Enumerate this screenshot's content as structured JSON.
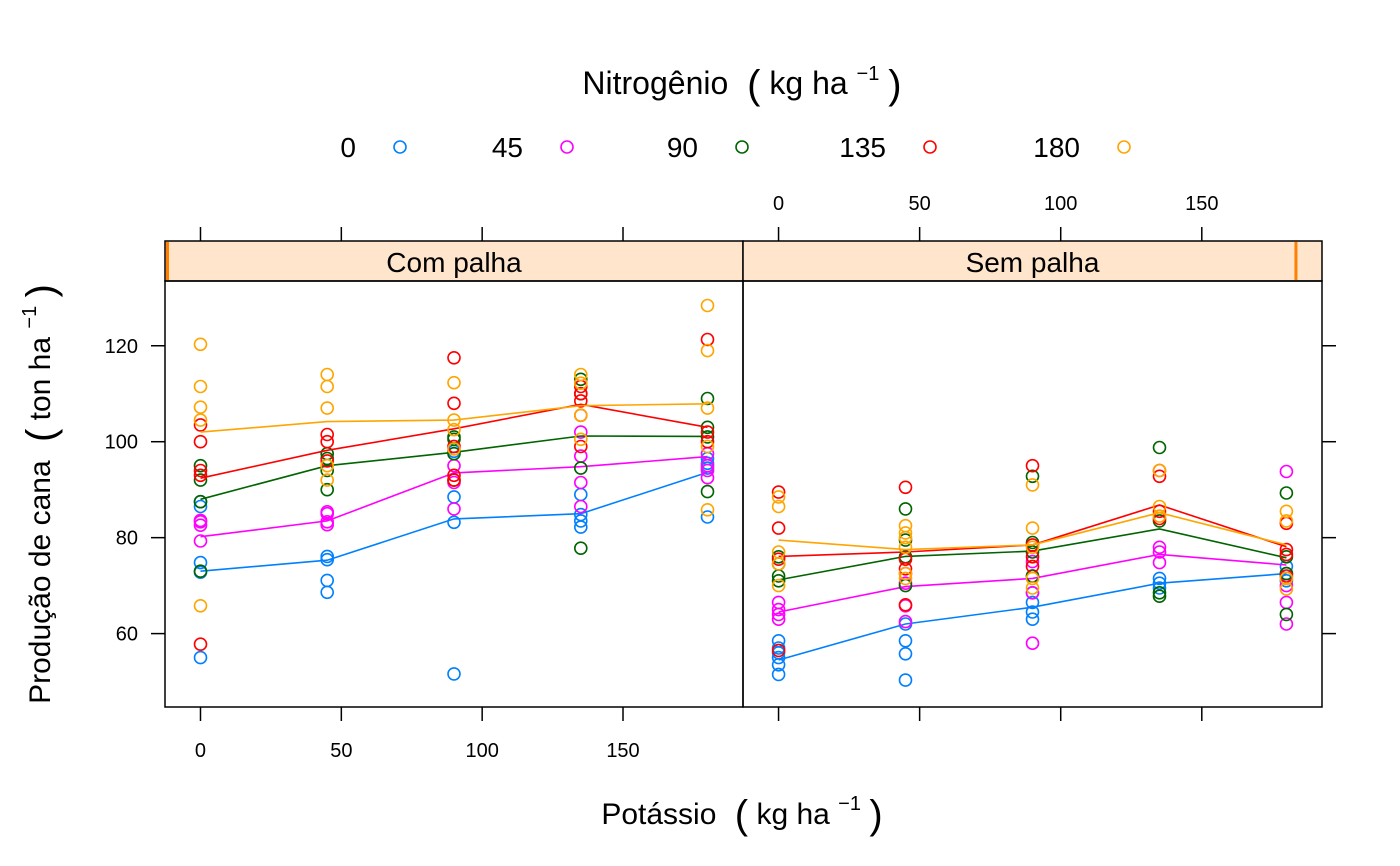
{
  "chart_data": {
    "type": "scatter",
    "legend": {
      "title_main": "Nitrogênio",
      "title_unit_base": "kg  ha",
      "title_unit_exp": "−1",
      "placement": "top",
      "entries": [
        {
          "name": "0",
          "color": "#0080ff"
        },
        {
          "name": "45",
          "color": "#ff00ff"
        },
        {
          "name": "90",
          "color": "#006400"
        },
        {
          "name": "135",
          "color": "#ff0000"
        },
        {
          "name": "180",
          "color": "#ffa500"
        }
      ]
    },
    "xlabel": {
      "main": "Potássio",
      "unit_base": "kg  ha",
      "unit_exp": "−1"
    },
    "ylabel": {
      "main": "Produção de cana",
      "unit_base": "ton  ha",
      "unit_exp": "−1"
    },
    "xlim": [
      -12.6,
      192.6
    ],
    "ylim": [
      44.7,
      133.5
    ],
    "x_ticks": [
      0,
      50,
      100,
      150
    ],
    "y_ticks": [
      60,
      80,
      100,
      120
    ],
    "x_tick_labels": [
      "0",
      "50",
      "100",
      "150"
    ],
    "y_tick_labels": [
      "60",
      "80",
      "100",
      "120"
    ],
    "x_levels": [
      0,
      45,
      90,
      135,
      180
    ],
    "grid": false,
    "panels": [
      {
        "strip": "Com palha",
        "series": [
          {
            "name": "0",
            "means": [
              73,
              75.3,
              83.9,
              85,
              93.6
            ],
            "points": [
              [
                0,
                55
              ],
              [
                0,
                72.8
              ],
              [
                0,
                74.8
              ],
              [
                0,
                86.5
              ],
              [
                0,
                87.5
              ],
              [
                45,
                68.6
              ],
              [
                45,
                71.1
              ],
              [
                45,
                75.4
              ],
              [
                45,
                76.1
              ],
              [
                90,
                51.6
              ],
              [
                90,
                83.2
              ],
              [
                90,
                88.5
              ],
              [
                90,
                98
              ],
              [
                135,
                82.2
              ],
              [
                135,
                83.5
              ],
              [
                135,
                84.8
              ],
              [
                135,
                89
              ],
              [
                180,
                84.3
              ],
              [
                180,
                94.5
              ],
              [
                180,
                95.5
              ],
              [
                180,
                96.5
              ]
            ]
          },
          {
            "name": "45",
            "means": [
              80.2,
              83.5,
              93.5,
              94.8,
              96.9
            ],
            "points": [
              [
                0,
                79.3
              ],
              [
                0,
                82.6
              ],
              [
                0,
                83.3
              ],
              [
                0,
                83.6
              ],
              [
                45,
                82.7
              ],
              [
                45,
                83.3
              ],
              [
                45,
                85
              ],
              [
                45,
                85.4
              ],
              [
                90,
                86
              ],
              [
                90,
                91.5
              ],
              [
                90,
                95
              ],
              [
                90,
                99
              ],
              [
                135,
                86.5
              ],
              [
                135,
                91.5
              ],
              [
                135,
                97
              ],
              [
                135,
                102
              ],
              [
                180,
                92.5
              ],
              [
                180,
                94
              ],
              [
                180,
                95
              ],
              [
                180,
                97.5
              ]
            ]
          },
          {
            "name": "90",
            "means": [
              88,
              95,
              97.8,
              101.2,
              101.1
            ],
            "points": [
              [
                0,
                73
              ],
              [
                0,
                87.5
              ],
              [
                0,
                92
              ],
              [
                0,
                95
              ],
              [
                45,
                90
              ],
              [
                45,
                94
              ],
              [
                45,
                96.5
              ],
              [
                45,
                97.5
              ],
              [
                90,
                92
              ],
              [
                90,
                97.5
              ],
              [
                90,
                100.5
              ],
              [
                90,
                101
              ],
              [
                135,
                77.8
              ],
              [
                135,
                94.5
              ],
              [
                135,
                110
              ],
              [
                135,
                113
              ],
              [
                180,
                89.6
              ],
              [
                180,
                101
              ],
              [
                180,
                103
              ],
              [
                180,
                109
              ]
            ]
          },
          {
            "name": "135",
            "means": [
              92.4,
              98.2,
              102.7,
              107.8,
              103
            ],
            "points": [
              [
                0,
                57.8
              ],
              [
                0,
                93
              ],
              [
                0,
                94
              ],
              [
                0,
                100
              ],
              [
                0,
                103.5
              ],
              [
                45,
                96
              ],
              [
                45,
                100
              ],
              [
                45,
                101.5
              ],
              [
                90,
                92
              ],
              [
                90,
                93
              ],
              [
                90,
                99
              ],
              [
                90,
                108
              ],
              [
                90,
                117.5
              ],
              [
                135,
                99
              ],
              [
                135,
                105.5
              ],
              [
                135,
                108.5
              ],
              [
                135,
                110
              ],
              [
                135,
                111.5
              ],
              [
                180,
                100
              ],
              [
                180,
                102
              ],
              [
                180,
                121.3
              ]
            ]
          },
          {
            "name": "180",
            "means": [
              102,
              104.2,
              104.5,
              107.5,
              107.9
            ],
            "points": [
              [
                0,
                65.8
              ],
              [
                0,
                104.5
              ],
              [
                0,
                107.2
              ],
              [
                0,
                111.5
              ],
              [
                0,
                120.3
              ],
              [
                45,
                92
              ],
              [
                45,
                95
              ],
              [
                45,
                107
              ],
              [
                45,
                111.5
              ],
              [
                45,
                114
              ],
              [
                90,
                98.5
              ],
              [
                90,
                102.5
              ],
              [
                90,
                104.5
              ],
              [
                90,
                112.3
              ],
              [
                135,
                100.5
              ],
              [
                135,
                105.5
              ],
              [
                135,
                112.2
              ],
              [
                135,
                114
              ],
              [
                180,
                85.8
              ],
              [
                180,
                99
              ],
              [
                180,
                107
              ],
              [
                180,
                119
              ],
              [
                180,
                128.4
              ]
            ]
          }
        ]
      },
      {
        "strip": "Sem palha",
        "series": [
          {
            "name": "0",
            "means": [
              54.5,
              62,
              65.5,
              70.5,
              72.5
            ],
            "points": [
              [
                0,
                51.5
              ],
              [
                0,
                53.5
              ],
              [
                0,
                55
              ],
              [
                0,
                56
              ],
              [
                0,
                57
              ],
              [
                0,
                58.5
              ],
              [
                45,
                50.3
              ],
              [
                45,
                55.8
              ],
              [
                45,
                58.5
              ],
              [
                45,
                62
              ],
              [
                90,
                63
              ],
              [
                90,
                64.5
              ],
              [
                90,
                66.5
              ],
              [
                90,
                68.5
              ],
              [
                135,
                69.5
              ],
              [
                135,
                70.5
              ],
              [
                135,
                71.5
              ],
              [
                180,
                71
              ],
              [
                180,
                72.5
              ],
              [
                180,
                74
              ]
            ]
          },
          {
            "name": "45",
            "means": [
              64.5,
              69.8,
              71.5,
              76.5,
              74.3
            ],
            "points": [
              [
                0,
                63
              ],
              [
                0,
                64
              ],
              [
                0,
                65
              ],
              [
                0,
                66.5
              ],
              [
                45,
                62.5
              ],
              [
                45,
                65.8
              ],
              [
                45,
                70.5
              ],
              [
                45,
                72.5
              ],
              [
                90,
                58
              ],
              [
                90,
                68.5
              ],
              [
                90,
                72
              ],
              [
                90,
                75
              ],
              [
                135,
                74.8
              ],
              [
                135,
                77
              ],
              [
                135,
                78
              ],
              [
                180,
                62
              ],
              [
                180,
                66.5
              ],
              [
                180,
                70
              ],
              [
                180,
                93.8
              ]
            ]
          },
          {
            "name": "90",
            "means": [
              71.2,
              76.1,
              77.2,
              81.8,
              75.8
            ],
            "points": [
              [
                0,
                71
              ],
              [
                0,
                72
              ],
              [
                0,
                74.5
              ],
              [
                0,
                76
              ],
              [
                45,
                70
              ],
              [
                45,
                76
              ],
              [
                45,
                79.5
              ],
              [
                45,
                86
              ],
              [
                90,
                72
              ],
              [
                90,
                77
              ],
              [
                90,
                79
              ],
              [
                90,
                92.8
              ],
              [
                135,
                67.8
              ],
              [
                135,
                68.5
              ],
              [
                135,
                83.5
              ],
              [
                135,
                98.8
              ],
              [
                180,
                64
              ],
              [
                180,
                72.5
              ],
              [
                180,
                76
              ],
              [
                180,
                89.3
              ]
            ]
          },
          {
            "name": "135",
            "means": [
              76.1,
              77,
              78.5,
              86.8,
              78.1
            ],
            "points": [
              [
                0,
                56.5
              ],
              [
                0,
                75.5
              ],
              [
                0,
                82
              ],
              [
                0,
                89.5
              ],
              [
                45,
                66
              ],
              [
                45,
                73.5
              ],
              [
                45,
                75.5
              ],
              [
                45,
                90.5
              ],
              [
                90,
                74
              ],
              [
                90,
                76
              ],
              [
                90,
                78.5
              ],
              [
                90,
                95
              ],
              [
                135,
                84
              ],
              [
                135,
                85.5
              ],
              [
                135,
                92.8
              ],
              [
                135,
                94
              ],
              [
                180,
                72
              ],
              [
                180,
                76.5
              ],
              [
                180,
                77.5
              ],
              [
                180,
                83
              ]
            ]
          },
          {
            "name": "180",
            "means": [
              79.5,
              77.5,
              78.5,
              85.2,
              78.5
            ],
            "points": [
              [
                0,
                70
              ],
              [
                0,
                74.5
              ],
              [
                0,
                77
              ],
              [
                0,
                86.5
              ],
              [
                0,
                88.5
              ],
              [
                45,
                71.5
              ],
              [
                45,
                72.5
              ],
              [
                45,
                78
              ],
              [
                45,
                80
              ],
              [
                45,
                81
              ],
              [
                45,
                82.5
              ],
              [
                90,
                69.5
              ],
              [
                90,
                71.5
              ],
              [
                90,
                78
              ],
              [
                90,
                82
              ],
              [
                90,
                91
              ],
              [
                135,
                84.5
              ],
              [
                135,
                86.5
              ],
              [
                135,
                94
              ],
              [
                180,
                69.3
              ],
              [
                180,
                71.5
              ],
              [
                180,
                83.5
              ],
              [
                180,
                85.5
              ]
            ]
          }
        ]
      }
    ]
  }
}
